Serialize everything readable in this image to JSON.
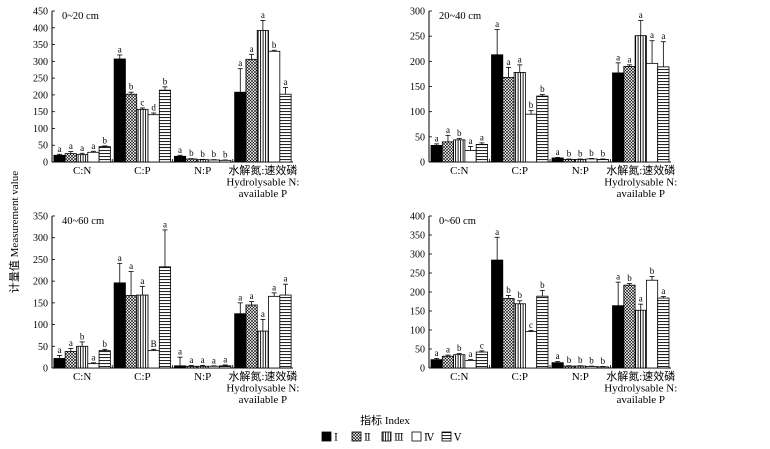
{
  "figure": {
    "ylabel": "计量值 Measurement value",
    "xlabel": "指标 Index",
    "legend": [
      "Ⅰ",
      "Ⅱ",
      "Ⅲ",
      "Ⅳ",
      "Ⅴ"
    ]
  },
  "chart_data": [
    {
      "type": "bar",
      "title": "0~20 cm",
      "categories": [
        "C:N",
        "C:P",
        "N:P",
        "水解氮:速效磷|Hydrolysable N:|available P"
      ],
      "ylim": [
        0,
        450
      ],
      "yticks": [
        0,
        50,
        100,
        150,
        200,
        250,
        300,
        350,
        400,
        450
      ],
      "series": [
        {
          "name": "Ⅰ",
          "values": [
            20,
            307,
            17,
            208
          ],
          "errors": [
            3,
            12,
            3,
            70
          ],
          "letters": [
            "a",
            "a",
            "a",
            "a"
          ]
        },
        {
          "name": "Ⅱ",
          "values": [
            25,
            202,
            9,
            306
          ],
          "errors": [
            6,
            6,
            1,
            15
          ],
          "letters": [
            "a",
            "b",
            "b",
            "a"
          ]
        },
        {
          "name": "Ⅲ",
          "values": [
            22,
            157,
            7,
            392
          ],
          "errors": [
            4,
            4,
            1,
            30
          ],
          "letters": [
            "a",
            "c",
            "b",
            "a"
          ]
        },
        {
          "name": "Ⅳ",
          "values": [
            29,
            141,
            6,
            330
          ],
          "errors": [
            3,
            5,
            1,
            3
          ],
          "letters": [
            "a",
            "d",
            "b",
            "b"
          ]
        },
        {
          "name": "Ⅴ",
          "values": [
            46,
            214,
            5,
            202
          ],
          "errors": [
            2,
            10,
            1,
            20
          ],
          "letters": [
            "b",
            "b",
            "b",
            "a"
          ]
        }
      ]
    },
    {
      "type": "bar",
      "title": "20~40 cm",
      "categories": [
        "C:N",
        "C:P",
        "N:P",
        "水解氮:速效磷|Hydrolysable N:|available P"
      ],
      "ylim": [
        0,
        300
      ],
      "yticks": [
        0,
        50,
        100,
        150,
        200,
        250,
        300
      ],
      "series": [
        {
          "name": "Ⅰ",
          "values": [
            33,
            213,
            8,
            177
          ],
          "errors": [
            3,
            50,
            1,
            20
          ],
          "letters": [
            "a",
            "a",
            "a",
            "a"
          ]
        },
        {
          "name": "Ⅱ",
          "values": [
            40,
            168,
            5,
            190
          ],
          "errors": [
            13,
            20,
            1,
            3
          ],
          "letters": [
            "a",
            "a",
            "b",
            "a"
          ]
        },
        {
          "name": "Ⅲ",
          "values": [
            44,
            178,
            5,
            251
          ],
          "errors": [
            3,
            15,
            1,
            30
          ],
          "letters": [
            "b",
            "a",
            "b",
            "a"
          ]
        },
        {
          "name": "Ⅳ",
          "values": [
            23,
            95,
            6,
            196
          ],
          "errors": [
            8,
            7,
            1,
            45
          ],
          "letters": [
            "a",
            "b",
            "b",
            "a"
          ]
        },
        {
          "name": "Ⅴ",
          "values": [
            35,
            131,
            5,
            189
          ],
          "errors": [
            3,
            3,
            1,
            50
          ],
          "letters": [
            "a",
            "b",
            "b",
            "a"
          ]
        }
      ]
    },
    {
      "type": "bar",
      "title": "40~60 cm",
      "categories": [
        "C:N",
        "C:P",
        "N:P",
        "水解氮:速效磷|Hydrolysable N:|available P"
      ],
      "ylim": [
        0,
        350
      ],
      "yticks": [
        0,
        50,
        100,
        150,
        200,
        250,
        300,
        350
      ],
      "series": [
        {
          "name": "Ⅰ",
          "values": [
            22,
            196,
            5,
            125
          ],
          "errors": [
            7,
            45,
            20,
            25
          ],
          "letters": [
            "a",
            "a",
            "a",
            "a"
          ]
        },
        {
          "name": "Ⅱ",
          "values": [
            38,
            167,
            4,
            145
          ],
          "errors": [
            7,
            55,
            2,
            8
          ],
          "letters": [
            "a",
            "a",
            "a",
            "a"
          ]
        },
        {
          "name": "Ⅲ",
          "values": [
            50,
            168,
            4,
            85
          ],
          "errors": [
            10,
            20,
            2,
            27
          ],
          "letters": [
            "b",
            "a",
            "a",
            "a"
          ]
        },
        {
          "name": "Ⅳ",
          "values": [
            10,
            40,
            4,
            165
          ],
          "errors": [
            2,
            3,
            1,
            8
          ],
          "letters": [
            "a",
            "B",
            "a",
            "a"
          ]
        },
        {
          "name": "Ⅴ",
          "values": [
            40,
            233,
            5,
            168
          ],
          "errors": [
            3,
            85,
            2,
            25
          ],
          "letters": [
            "b",
            "a",
            "a",
            "a"
          ]
        }
      ]
    },
    {
      "type": "bar",
      "title": "0~60 cm",
      "categories": [
        "C:N",
        "C:P",
        "N:P",
        "水解氮:速效磷|Hydrolysable N:|available P"
      ],
      "ylim": [
        0,
        400
      ],
      "yticks": [
        0,
        50,
        100,
        150,
        200,
        250,
        300,
        350,
        400
      ],
      "series": [
        {
          "name": "Ⅰ",
          "values": [
            22,
            284,
            14,
            164
          ],
          "errors": [
            3,
            60,
            3,
            62
          ],
          "letters": [
            "a",
            "a",
            "a",
            "a"
          ]
        },
        {
          "name": "Ⅱ",
          "values": [
            31,
            183,
            5,
            218
          ],
          "errors": [
            3,
            8,
            1,
            4
          ],
          "letters": [
            "a",
            "b",
            "b",
            "b"
          ]
        },
        {
          "name": "Ⅲ",
          "values": [
            35,
            169,
            5,
            152
          ],
          "errors": [
            3,
            8,
            1,
            16
          ],
          "letters": [
            "b",
            "b",
            "b",
            "a"
          ]
        },
        {
          "name": "Ⅳ",
          "values": [
            20,
            96,
            4,
            231
          ],
          "errors": [
            2,
            3,
            1,
            10
          ],
          "letters": [
            "a",
            "c",
            "b",
            "b"
          ]
        },
        {
          "name": "Ⅴ",
          "values": [
            42,
            189,
            3,
            184
          ],
          "errors": [
            3,
            15,
            1,
            4
          ],
          "letters": [
            "c",
            "b",
            "b",
            "a"
          ]
        }
      ]
    }
  ]
}
